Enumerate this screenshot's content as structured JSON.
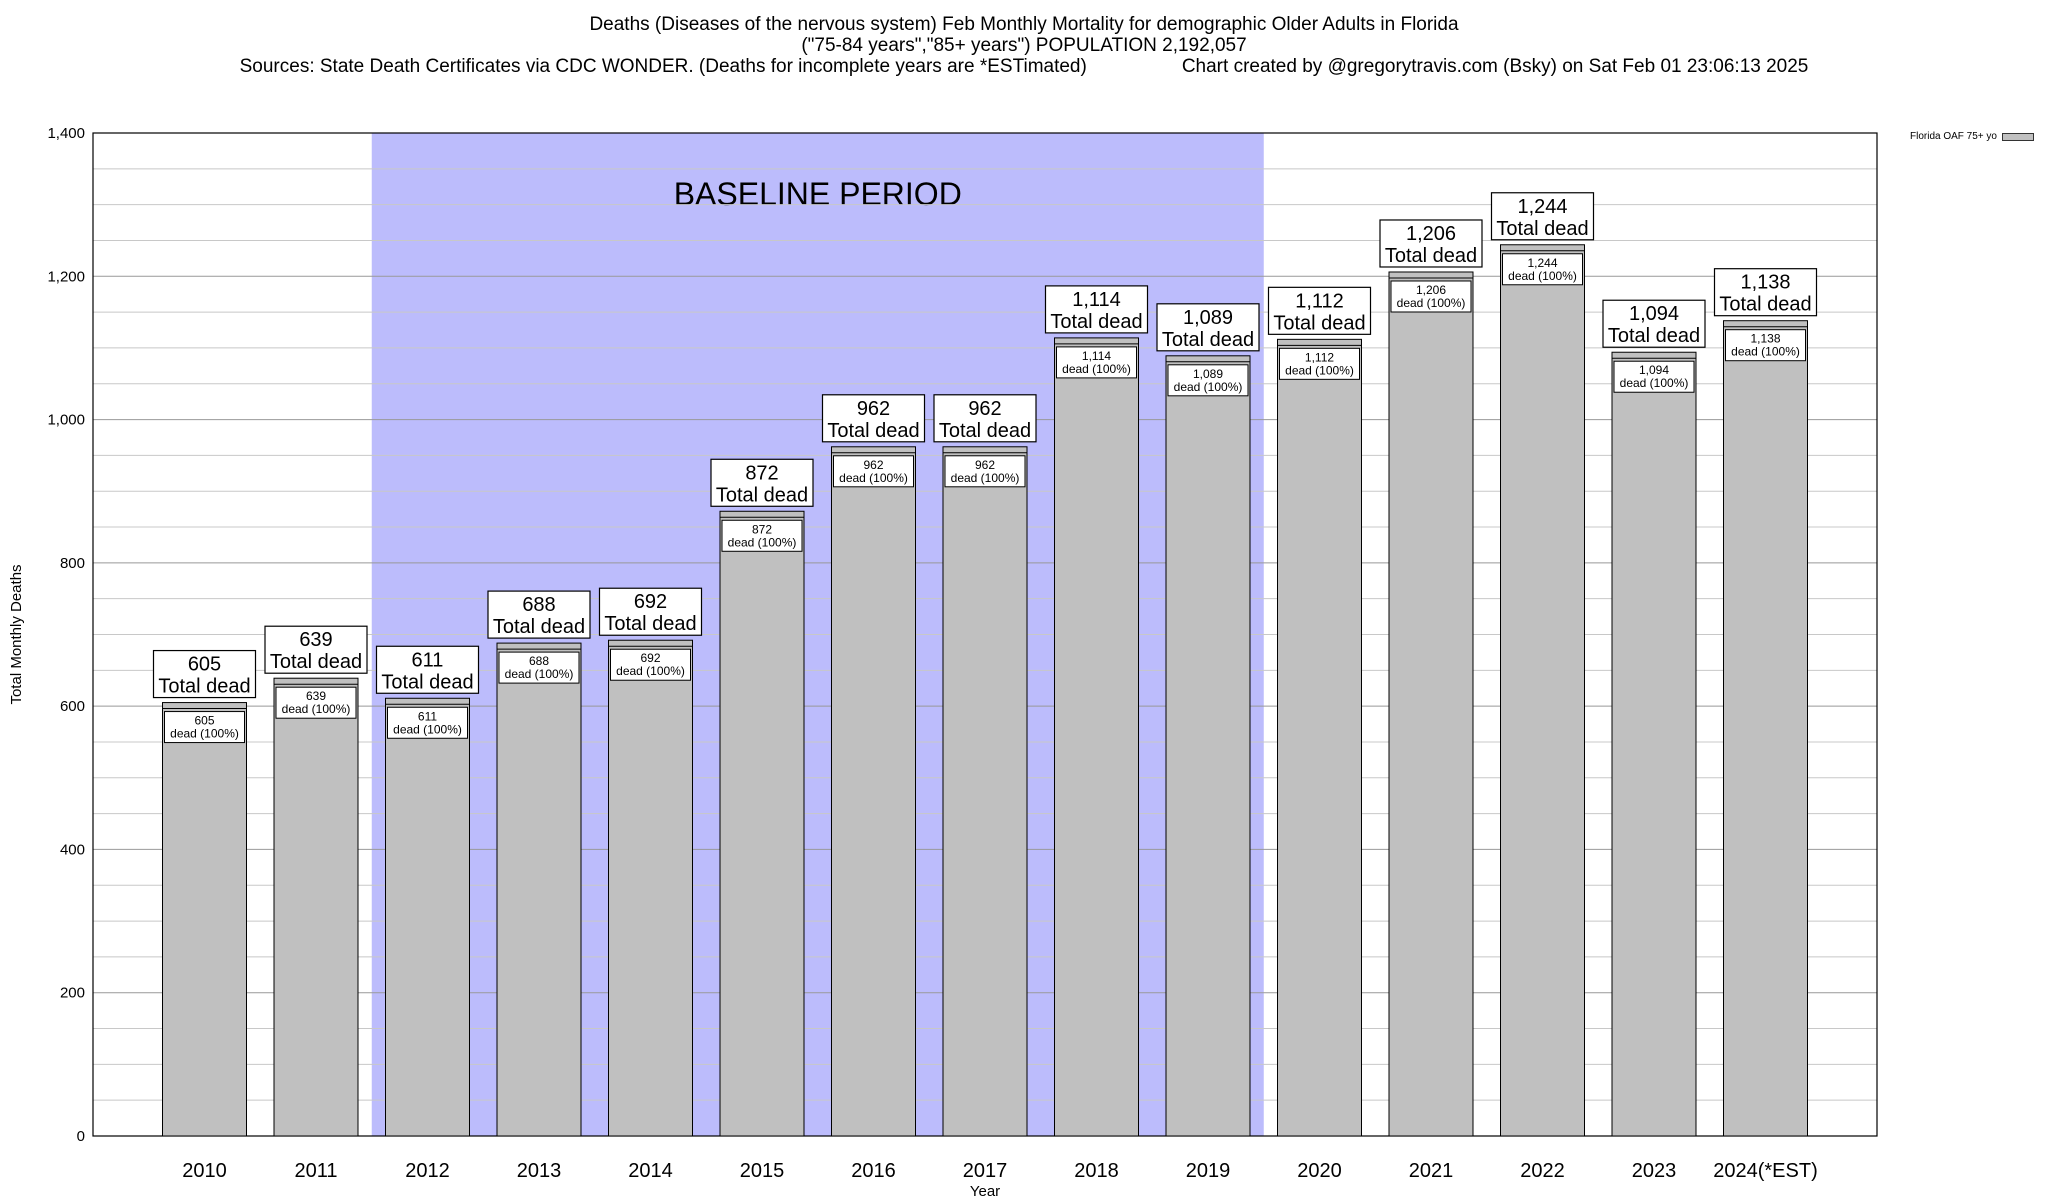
{
  "header": {
    "title_line1": "Deaths (Diseases of the nervous system) Feb Monthly Mortality for demographic Older Adults in Florida",
    "title_line2": "(\"75-84 years\",\"85+ years\") POPULATION 2,192,057",
    "sources": "Sources: State Death Certificates via CDC WONDER. (Deaths for incomplete years are *ESTimated)",
    "credit": "Chart created by @gregorytravis.com (Bsky) on Sat Feb 01 23:06:13 2025"
  },
  "legend": {
    "label": "Florida OAF 75+ yo"
  },
  "colors": {
    "bar": "#c0c0c0",
    "baseline": "#bcbcfc",
    "grid": "#c8c8c8"
  },
  "chart_data": {
    "type": "bar",
    "categories": [
      "2010",
      "2011",
      "2012",
      "2013",
      "2014",
      "2015",
      "2016",
      "2017",
      "2018",
      "2019",
      "2020",
      "2021",
      "2022",
      "2023",
      "2024(*EST)"
    ],
    "series": [
      {
        "name": "Florida OAF 75+ yo",
        "values": [
          605,
          639,
          611,
          688,
          692,
          872,
          962,
          962,
          1114,
          1089,
          1112,
          1206,
          1244,
          1094,
          1138
        ]
      }
    ],
    "value_labels": [
      "605",
      "639",
      "611",
      "688",
      "692",
      "872",
      "962",
      "962",
      "1,114",
      "1,089",
      "1,112",
      "1,206",
      "1,244",
      "1,094",
      "1,138"
    ],
    "bar_annotation_line2": "dead (100%)",
    "total_annotation_line2": "Total dead",
    "xlabel": "Year",
    "ylabel": "Total Monthly Deaths",
    "ylim": [
      0,
      1400
    ],
    "yticks": [
      0,
      200,
      400,
      600,
      800,
      1000,
      1200,
      1400
    ],
    "ytick_labels": [
      "0",
      "200",
      "400",
      "600",
      "800",
      "1,000",
      "1,200",
      "1,400"
    ],
    "baseline_period": {
      "label": "BASELINE PERIOD",
      "from": "2012",
      "to": "2019"
    },
    "grid": true,
    "legend_position": "top-right"
  }
}
